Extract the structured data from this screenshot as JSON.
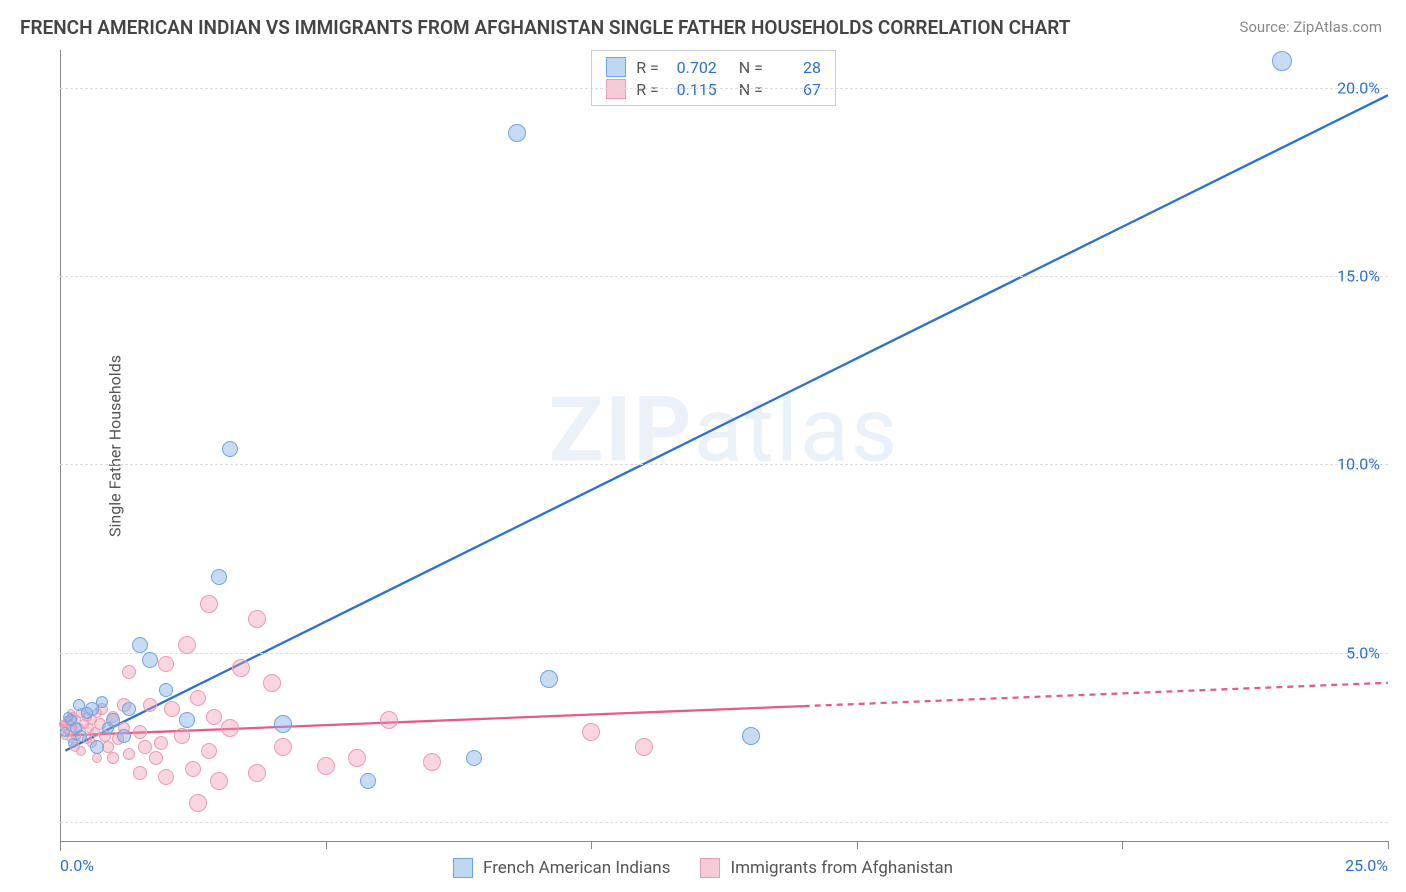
{
  "title": "FRENCH AMERICAN INDIAN VS IMMIGRANTS FROM AFGHANISTAN SINGLE FATHER HOUSEHOLDS CORRELATION CHART",
  "source": "Source: ZipAtlas.com",
  "ylabel": "Single Father Households",
  "watermark_bold": "ZIP",
  "watermark_light": "atlas",
  "chart": {
    "type": "scatter",
    "xlim": [
      0,
      25
    ],
    "ylim": [
      0,
      21
    ],
    "xticks": [
      0,
      5,
      10,
      15,
      20,
      25
    ],
    "xtick_labels": {
      "0": "0.0%",
      "25": "25.0%"
    },
    "yticks": [
      5,
      10,
      15,
      20
    ],
    "ytick_labels": {
      "5": "5.0%",
      "10": "10.0%",
      "15": "15.0%",
      "20": "20.0%"
    },
    "gridlines_y": [
      0.5,
      5,
      10,
      15,
      20
    ],
    "background_color": "#ffffff",
    "grid_color": "#dddddd",
    "axis_color": "#888888",
    "label_color": "#2c6fd8",
    "title_fontsize": 19,
    "label_fontsize": 16
  },
  "series": {
    "blue": {
      "name": "French American Indians",
      "color_fill": "rgba(130,175,230,0.45)",
      "color_stroke": "#6fa5df",
      "marker_size": 16,
      "r_label": "R =",
      "r_value": "0.702",
      "n_label": "N =",
      "n_value": "28",
      "trendline": {
        "x1": 0.1,
        "y1": 2.4,
        "x2": 25,
        "y2": 19.8,
        "color": "#2c6fd8",
        "width": 2.3,
        "dash_after_x": 25
      },
      "points": [
        {
          "x": 23,
          "y": 20.7,
          "size": 20
        },
        {
          "x": 8.6,
          "y": 18.8,
          "size": 18
        },
        {
          "x": 3.2,
          "y": 10.4,
          "size": 16
        },
        {
          "x": 9.2,
          "y": 4.3,
          "size": 18
        },
        {
          "x": 13.0,
          "y": 2.8,
          "size": 18
        },
        {
          "x": 7.8,
          "y": 2.2,
          "size": 16
        },
        {
          "x": 5.8,
          "y": 1.6,
          "size": 16
        },
        {
          "x": 4.2,
          "y": 3.1,
          "size": 18
        },
        {
          "x": 3.0,
          "y": 7.0,
          "size": 16
        },
        {
          "x": 1.7,
          "y": 4.8,
          "size": 16
        },
        {
          "x": 1.5,
          "y": 5.2,
          "size": 16
        },
        {
          "x": 1.0,
          "y": 3.2,
          "size": 14
        },
        {
          "x": 0.6,
          "y": 3.5,
          "size": 14
        },
        {
          "x": 0.3,
          "y": 3.0,
          "size": 12
        },
        {
          "x": 0.2,
          "y": 3.2,
          "size": 12
        },
        {
          "x": 0.4,
          "y": 2.8,
          "size": 12
        },
        {
          "x": 0.1,
          "y": 2.9,
          "size": 10
        },
        {
          "x": 1.2,
          "y": 2.8,
          "size": 14
        },
        {
          "x": 0.7,
          "y": 2.5,
          "size": 14
        },
        {
          "x": 0.5,
          "y": 3.4,
          "size": 12
        },
        {
          "x": 2.4,
          "y": 3.2,
          "size": 16
        },
        {
          "x": 0.15,
          "y": 3.3,
          "size": 10
        },
        {
          "x": 0.35,
          "y": 3.6,
          "size": 12
        },
        {
          "x": 2.0,
          "y": 4.0,
          "size": 14
        },
        {
          "x": 0.8,
          "y": 3.7,
          "size": 12
        },
        {
          "x": 0.25,
          "y": 2.6,
          "size": 10
        },
        {
          "x": 1.3,
          "y": 3.5,
          "size": 14
        },
        {
          "x": 0.9,
          "y": 3.0,
          "size": 12
        }
      ]
    },
    "pink": {
      "name": "Immigrants from Afghanistan",
      "color_fill": "rgba(240,150,175,0.4)",
      "color_stroke": "#ec9cb4",
      "marker_size": 16,
      "r_label": "R =",
      "r_value": "0.115",
      "n_label": "N =",
      "n_value": "67",
      "trendline": {
        "x1": 0.1,
        "y1": 2.8,
        "x2": 25,
        "y2": 4.2,
        "color": "#e75a8c",
        "width": 2.3,
        "dash_after_x": 14
      },
      "points": [
        {
          "x": 11.0,
          "y": 2.5,
          "size": 18
        },
        {
          "x": 10.0,
          "y": 2.9,
          "size": 18
        },
        {
          "x": 7.0,
          "y": 2.1,
          "size": 18
        },
        {
          "x": 6.2,
          "y": 3.2,
          "size": 18
        },
        {
          "x": 5.6,
          "y": 2.2,
          "size": 18
        },
        {
          "x": 5.0,
          "y": 2.0,
          "size": 18
        },
        {
          "x": 4.2,
          "y": 2.5,
          "size": 18
        },
        {
          "x": 4.0,
          "y": 4.2,
          "size": 18
        },
        {
          "x": 3.7,
          "y": 1.8,
          "size": 18
        },
        {
          "x": 3.7,
          "y": 5.9,
          "size": 18
        },
        {
          "x": 3.4,
          "y": 4.6,
          "size": 18
        },
        {
          "x": 3.2,
          "y": 3.0,
          "size": 18
        },
        {
          "x": 3.0,
          "y": 1.6,
          "size": 18
        },
        {
          "x": 2.8,
          "y": 6.3,
          "size": 18
        },
        {
          "x": 2.8,
          "y": 2.4,
          "size": 16
        },
        {
          "x": 2.6,
          "y": 1.0,
          "size": 18
        },
        {
          "x": 2.5,
          "y": 1.9,
          "size": 16
        },
        {
          "x": 2.4,
          "y": 5.2,
          "size": 18
        },
        {
          "x": 2.3,
          "y": 2.8,
          "size": 16
        },
        {
          "x": 2.1,
          "y": 3.5,
          "size": 16
        },
        {
          "x": 2.0,
          "y": 1.7,
          "size": 16
        },
        {
          "x": 2.0,
          "y": 4.7,
          "size": 16
        },
        {
          "x": 2.6,
          "y": 3.8,
          "size": 16
        },
        {
          "x": 1.8,
          "y": 2.2,
          "size": 14
        },
        {
          "x": 1.7,
          "y": 3.6,
          "size": 14
        },
        {
          "x": 1.6,
          "y": 2.5,
          "size": 14
        },
        {
          "x": 1.5,
          "y": 1.8,
          "size": 14
        },
        {
          "x": 1.5,
          "y": 2.9,
          "size": 14
        },
        {
          "x": 1.3,
          "y": 4.5,
          "size": 14
        },
        {
          "x": 1.3,
          "y": 2.3,
          "size": 12
        },
        {
          "x": 1.2,
          "y": 3.6,
          "size": 14
        },
        {
          "x": 1.2,
          "y": 3.0,
          "size": 12
        },
        {
          "x": 1.1,
          "y": 2.7,
          "size": 12
        },
        {
          "x": 1.0,
          "y": 2.2,
          "size": 12
        },
        {
          "x": 1.0,
          "y": 3.3,
          "size": 12
        },
        {
          "x": 0.9,
          "y": 2.5,
          "size": 12
        },
        {
          "x": 0.85,
          "y": 2.8,
          "size": 12
        },
        {
          "x": 0.8,
          "y": 3.5,
          "size": 12
        },
        {
          "x": 0.75,
          "y": 3.1,
          "size": 12
        },
        {
          "x": 0.7,
          "y": 2.2,
          "size": 10
        },
        {
          "x": 0.7,
          "y": 3.4,
          "size": 10
        },
        {
          "x": 0.65,
          "y": 2.9,
          "size": 10
        },
        {
          "x": 0.6,
          "y": 3.2,
          "size": 10
        },
        {
          "x": 0.6,
          "y": 2.6,
          "size": 10
        },
        {
          "x": 0.55,
          "y": 3.0,
          "size": 10
        },
        {
          "x": 0.5,
          "y": 2.7,
          "size": 10
        },
        {
          "x": 0.5,
          "y": 3.3,
          "size": 10
        },
        {
          "x": 0.45,
          "y": 3.1,
          "size": 10
        },
        {
          "x": 0.4,
          "y": 2.4,
          "size": 10
        },
        {
          "x": 0.4,
          "y": 3.4,
          "size": 10
        },
        {
          "x": 0.35,
          "y": 3.0,
          "size": 10
        },
        {
          "x": 0.3,
          "y": 2.8,
          "size": 10
        },
        {
          "x": 0.3,
          "y": 3.2,
          "size": 10
        },
        {
          "x": 0.28,
          "y": 2.5,
          "size": 10
        },
        {
          "x": 0.25,
          "y": 3.3,
          "size": 10
        },
        {
          "x": 0.22,
          "y": 3.0,
          "size": 10
        },
        {
          "x": 0.2,
          "y": 2.7,
          "size": 8
        },
        {
          "x": 0.2,
          "y": 3.4,
          "size": 8
        },
        {
          "x": 0.18,
          "y": 3.1,
          "size": 8
        },
        {
          "x": 0.15,
          "y": 2.9,
          "size": 8
        },
        {
          "x": 0.13,
          "y": 3.2,
          "size": 8
        },
        {
          "x": 0.1,
          "y": 3.1,
          "size": 8
        },
        {
          "x": 0.1,
          "y": 2.8,
          "size": 8
        },
        {
          "x": 0.08,
          "y": 3.0,
          "size": 8
        },
        {
          "x": 0.05,
          "y": 3.1,
          "size": 8
        },
        {
          "x": 2.9,
          "y": 3.3,
          "size": 16
        },
        {
          "x": 1.9,
          "y": 2.6,
          "size": 14
        }
      ]
    }
  }
}
